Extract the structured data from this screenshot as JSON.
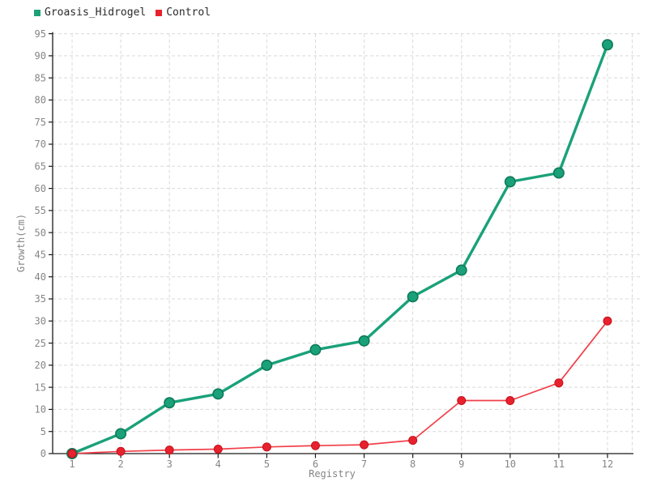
{
  "chart_data": {
    "type": "line",
    "title": "",
    "xlabel": "Registry",
    "ylabel": "Growth(cm)",
    "x": [
      1,
      2,
      3,
      4,
      5,
      6,
      7,
      8,
      9,
      10,
      11,
      12
    ],
    "ylim": [
      0,
      95
    ],
    "ytick_step": 5,
    "grid": "dashed",
    "legend_position": "top-left",
    "colors": {
      "axis": "#1a1a1a",
      "grid": "#d9d9d9",
      "tick_text": "#858585",
      "legend_text": "#2a2a2a",
      "background": "#ffffff"
    },
    "series": [
      {
        "name": "Groasis_Hidrogel",
        "line_color": "#1aa179",
        "marker_color": "#1aa179",
        "marker_edge": "#0d7a58",
        "values": [
          0,
          4.5,
          11.5,
          13.5,
          20,
          23.5,
          25.5,
          35.5,
          41.5,
          61.5,
          63.5,
          92.5
        ]
      },
      {
        "name": "Control",
        "line_color": "#f0404a",
        "marker_color": "#e8212e",
        "marker_edge": "#c4101c",
        "values": [
          0,
          0.5,
          0.8,
          1,
          1.5,
          1.8,
          2,
          3,
          12,
          12,
          16,
          30
        ]
      }
    ]
  }
}
